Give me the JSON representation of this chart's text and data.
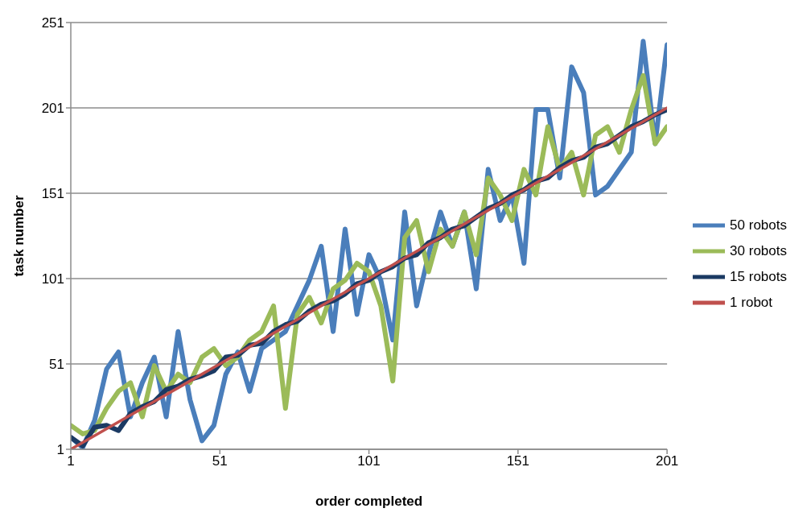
{
  "chart_data": {
    "type": "line",
    "xlabel": "order completed",
    "ylabel": "task number",
    "x": [
      1,
      5,
      9,
      13,
      17,
      21,
      25,
      29,
      33,
      37,
      41,
      45,
      49,
      53,
      57,
      61,
      65,
      69,
      73,
      77,
      81,
      85,
      89,
      93,
      97,
      101,
      105,
      109,
      113,
      117,
      121,
      125,
      129,
      133,
      137,
      141,
      145,
      149,
      153,
      157,
      161,
      165,
      169,
      173,
      177,
      181,
      185,
      189,
      193,
      197,
      201
    ],
    "series": [
      {
        "name": "50 robots",
        "color": "#4a7ebb",
        "values": [
          8,
          2,
          18,
          48,
          58,
          20,
          40,
          55,
          20,
          70,
          30,
          6,
          15,
          45,
          58,
          35,
          60,
          65,
          70,
          85,
          100,
          120,
          70,
          130,
          80,
          115,
          100,
          65,
          140,
          85,
          115,
          140,
          120,
          140,
          95,
          165,
          135,
          150,
          110,
          200,
          200,
          160,
          225,
          210,
          150,
          155,
          165,
          175,
          240,
          180,
          238
        ]
      },
      {
        "name": "30 robots",
        "color": "#9bbb59",
        "values": [
          15,
          10,
          12,
          25,
          35,
          40,
          20,
          50,
          35,
          45,
          40,
          55,
          60,
          50,
          55,
          65,
          70,
          85,
          25,
          80,
          90,
          75,
          95,
          100,
          110,
          105,
          85,
          41,
          125,
          135,
          105,
          130,
          120,
          140,
          115,
          160,
          150,
          135,
          165,
          150,
          190,
          165,
          175,
          150,
          185,
          190,
          175,
          200,
          220,
          180,
          190
        ]
      },
      {
        "name": "15 robots",
        "color": "#1b3a63",
        "values": [
          8,
          3,
          14,
          15,
          12,
          22,
          26,
          29,
          36,
          38,
          42,
          44,
          47,
          55,
          56,
          62,
          63,
          70,
          74,
          76,
          82,
          86,
          88,
          92,
          98,
          100,
          105,
          108,
          113,
          115,
          122,
          125,
          130,
          132,
          137,
          142,
          145,
          150,
          153,
          158,
          160,
          166,
          170,
          172,
          178,
          180,
          185,
          190,
          193,
          197,
          200
        ]
      },
      {
        "name": "1 robot",
        "color": "#c0504d",
        "x": [
          1,
          201
        ],
        "values": [
          1,
          201
        ]
      }
    ],
    "xlim": [
      1,
      201
    ],
    "xticks": [
      1,
      51,
      101,
      151,
      201
    ],
    "ylim": [
      1,
      251
    ],
    "yticks": [
      1,
      51,
      101,
      151,
      201,
      251
    ],
    "grid": "y",
    "legend": "right",
    "marker": "none",
    "line_style": "solid"
  }
}
